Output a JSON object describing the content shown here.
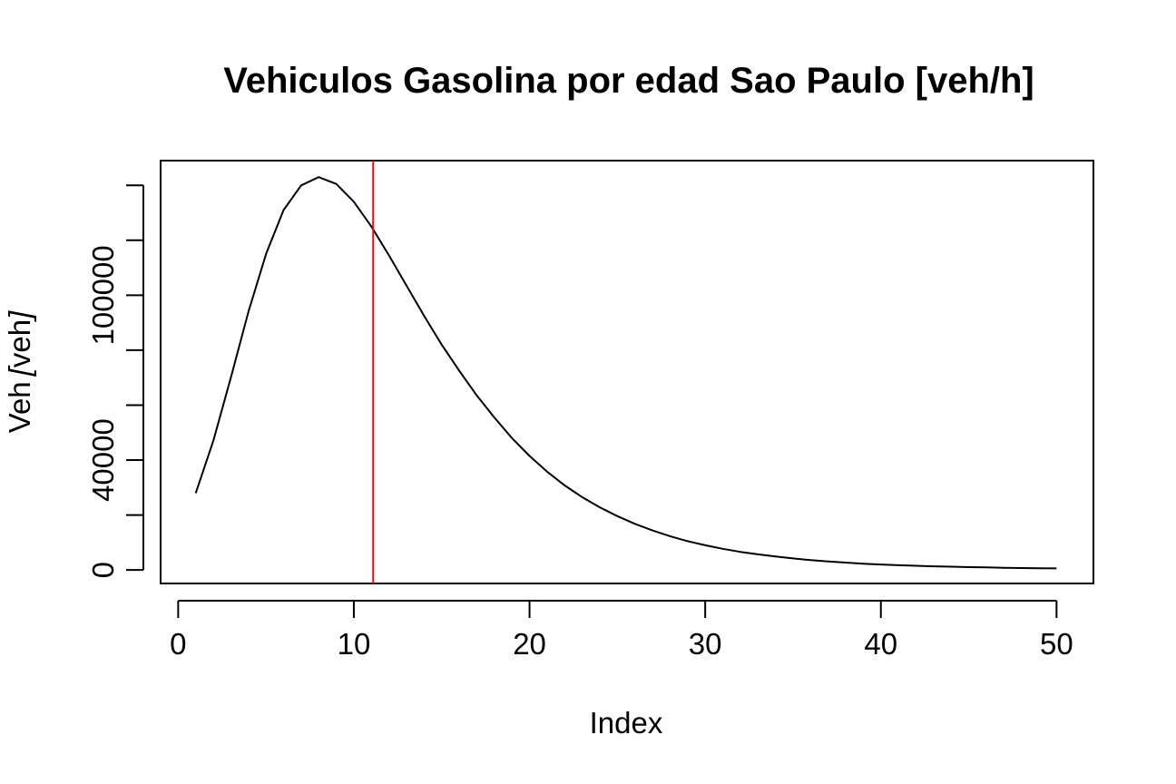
{
  "chart_data": {
    "type": "line",
    "title": "Vehiculos Gasolina por edad Sao Paulo [veh/h]",
    "xlabel": "Index",
    "ylabel": {
      "text": "Veh",
      "bracket_open": "[",
      "unit": "veh",
      "bracket_close": "]"
    },
    "xlim": [
      -1,
      52.1
    ],
    "ylim": [
      -4900,
      149000
    ],
    "x_ticks": [
      0,
      10,
      20,
      30,
      40,
      50
    ],
    "x_tick_labels": [
      "0",
      "10",
      "20",
      "30",
      "40",
      "50"
    ],
    "y_ticks": [
      0,
      20000,
      40000,
      60000,
      80000,
      100000,
      120000,
      140000
    ],
    "y_tick_labels": [
      "0",
      "",
      "40000",
      "",
      "",
      "100000",
      "",
      ""
    ],
    "grid": false,
    "series": [
      {
        "color": "#000000",
        "x": [
          1,
          2,
          3,
          4,
          5,
          6,
          7,
          8,
          9,
          10,
          11,
          12,
          13,
          14,
          15,
          16,
          17,
          18,
          19,
          20,
          21,
          22,
          23,
          24,
          25,
          26,
          27,
          28,
          29,
          30,
          31,
          32,
          33,
          34,
          35,
          36,
          37,
          38,
          39,
          40,
          41,
          42,
          43,
          44,
          45,
          46,
          47,
          48,
          49,
          50
        ],
        "y": [
          28000,
          47000,
          70000,
          94000,
          115000,
          131000,
          140000,
          143000,
          140500,
          134000,
          125000,
          114500,
          103500,
          92500,
          82000,
          72500,
          63500,
          55500,
          48000,
          41500,
          35800,
          30800,
          26500,
          22800,
          19600,
          16800,
          14400,
          12300,
          10500,
          9000,
          7700,
          6600,
          5700,
          4900,
          4200,
          3600,
          3100,
          2700,
          2300,
          2000,
          1750,
          1550,
          1350,
          1200,
          1050,
          930,
          820,
          730,
          650,
          580
        ]
      }
    ],
    "vline": {
      "x": 11.1,
      "color": "#dd1111"
    }
  }
}
